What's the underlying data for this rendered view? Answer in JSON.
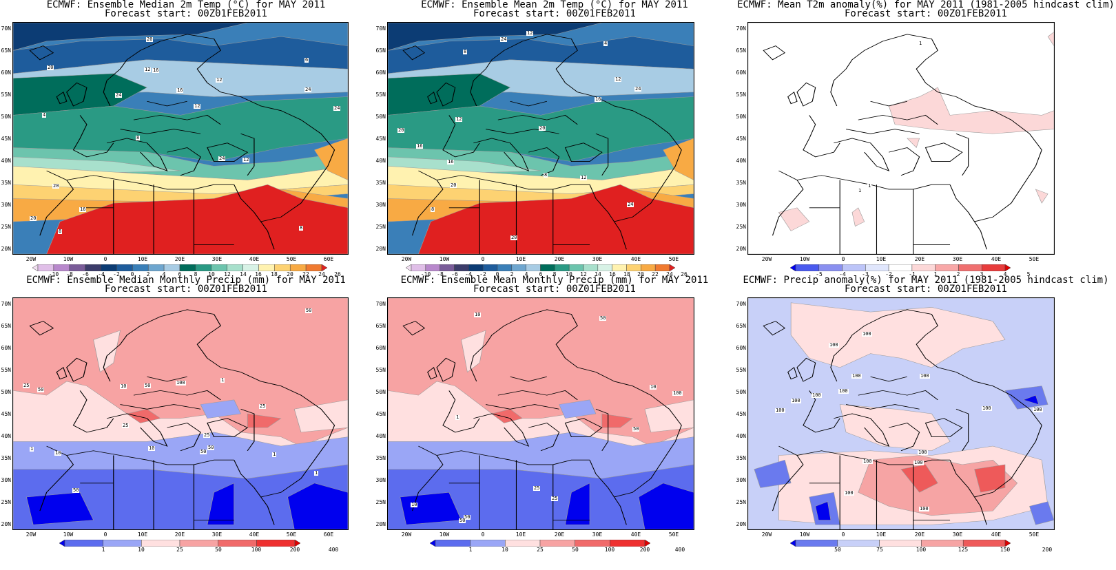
{
  "panels": [
    {
      "id": "p1",
      "title": "ECMWF: Ensemble Median 2m Temp (°C) for MAY 2011",
      "subtitle": "Forecast start: 00Z01FEB2011",
      "kind": "temp",
      "lat_ticks": [
        "70N",
        "65N",
        "60N",
        "55N",
        "50N",
        "45N",
        "40N",
        "35N",
        "30N",
        "25N",
        "20N"
      ],
      "lon_ticks": [
        "20W",
        "10W",
        "0",
        "10E",
        "20E",
        "30E",
        "40E",
        "50E",
        "60E"
      ],
      "colorbar": [
        "-10",
        "-8",
        "-6",
        "-4",
        "-2",
        "0",
        "2",
        "4",
        "6",
        "8",
        "10",
        "12",
        "14",
        "16",
        "18",
        "20",
        "22",
        "24",
        "26"
      ],
      "contour_labels": [
        "8",
        "4",
        "6",
        "8",
        "12",
        "8",
        "12",
        "16",
        "20",
        "24",
        "20",
        "16",
        "16",
        "12",
        "12",
        "20",
        "20",
        "24",
        "24",
        "24"
      ]
    },
    {
      "id": "p2",
      "title": "ECMWF: Ensemble Mean 2m Temp (°C) for MAY 2011",
      "subtitle": "Forecast start: 00Z01FEB2011",
      "kind": "temp",
      "lat_ticks": [
        "70N",
        "65N",
        "60N",
        "55N",
        "50N",
        "45N",
        "40N",
        "35N",
        "30N",
        "25N",
        "20N"
      ],
      "lon_ticks": [
        "20W",
        "10W",
        "0",
        "10E",
        "20E",
        "30E",
        "40E",
        "50E"
      ],
      "colorbar": [
        "-10",
        "-8",
        "-6",
        "-4",
        "-2",
        "0",
        "2",
        "4",
        "6",
        "8",
        "10",
        "12",
        "14",
        "16",
        "18",
        "20",
        "22",
        "24",
        "26"
      ],
      "contour_labels": [
        "8",
        "4",
        "8",
        "12",
        "8",
        "12",
        "16",
        "20",
        "24",
        "16",
        "16",
        "12",
        "12",
        "20",
        "20",
        "24",
        "24",
        "20"
      ]
    },
    {
      "id": "p3",
      "title": "ECMWF: Mean T2m anomaly(%) for MAY 2011 (1981-2005 hindcast clim)",
      "subtitle": "Forecast start: 00Z01FEB2011",
      "kind": "tanom",
      "lat_ticks": [
        "70N",
        "65N",
        "60N",
        "55N",
        "50N",
        "45N",
        "40N",
        "35N",
        "30N",
        "25N",
        "20N"
      ],
      "lon_ticks": [
        "20W",
        "10W",
        "0",
        "10E",
        "20E",
        "30E",
        "40E",
        "50E"
      ],
      "colorbar": [
        "-5",
        "-4",
        "-3",
        "-2",
        "-1",
        "1",
        "2",
        "3",
        "4",
        "5"
      ],
      "contour_labels": [
        "1",
        "1",
        "1"
      ]
    },
    {
      "id": "p4",
      "title": "ECMWF: Ensemble Median Monthly Precip (mm) for MAY 2011",
      "subtitle": "Forecast start: 00Z01FEB2011",
      "kind": "precip",
      "lat_ticks": [
        "70N",
        "65N",
        "60N",
        "55N",
        "50N",
        "45N",
        "40N",
        "35N",
        "30N",
        "25N",
        "20N"
      ],
      "lon_ticks": [
        "20W",
        "10W",
        "0",
        "10E",
        "20E",
        "30E",
        "40E",
        "50E",
        "60E"
      ],
      "colorbar": [
        "1",
        "10",
        "25",
        "50",
        "100",
        "200",
        "400"
      ],
      "contour_labels": [
        "50",
        "50",
        "50",
        "50",
        "25",
        "50",
        "25",
        "25",
        "10",
        "100",
        "50",
        "25",
        "10",
        "10",
        "1",
        "1",
        "1",
        "1"
      ]
    },
    {
      "id": "p5",
      "title": "ECMWF: Ensemble Mean Monthly Precip (mm) for MAY 2011",
      "subtitle": "Forecast start: 00Z01FEB2011",
      "kind": "precip",
      "lat_ticks": [
        "70N",
        "65N",
        "60N",
        "55N",
        "50N",
        "45N",
        "40N",
        "35N",
        "30N",
        "25N",
        "20N"
      ],
      "lon_ticks": [
        "20W",
        "10W",
        "0",
        "10E",
        "20E",
        "30E",
        "40E",
        "50E"
      ],
      "colorbar": [
        "1",
        "10",
        "25",
        "50",
        "100",
        "200",
        "400"
      ],
      "contour_labels": [
        "50",
        "50",
        "50",
        "100",
        "50",
        "25",
        "25",
        "10",
        "10",
        "10",
        "1"
      ]
    },
    {
      "id": "p6",
      "title": "ECMWF: Precip anomaly(%) for MAY 2011 (1981-2005 hindcast clim)",
      "subtitle": "Forecast start: 00Z01FEB2011",
      "kind": "panom",
      "lat_ticks": [
        "70N",
        "65N",
        "60N",
        "55N",
        "50N",
        "45N",
        "40N",
        "35N",
        "30N",
        "25N",
        "20N"
      ],
      "lon_ticks": [
        "20W",
        "10W",
        "0",
        "10E",
        "20E",
        "30E",
        "40E",
        "50E"
      ],
      "colorbar": [
        "50",
        "75",
        "100",
        "125",
        "150",
        "200"
      ],
      "contour_labels": [
        "100",
        "100",
        "100",
        "100",
        "100",
        "100",
        "100",
        "100",
        "100",
        "100",
        "100",
        "100",
        "100",
        "100",
        "100"
      ]
    }
  ],
  "colors": {
    "temp": [
      "#f2e0f2",
      "#e0bfe8",
      "#b888cc",
      "#7a5c99",
      "#3c3c6a",
      "#0c3c74",
      "#1e5c9c",
      "#3a7fb8",
      "#6ea6cf",
      "#a8cce4",
      "#006d5b",
      "#2a9a84",
      "#6cc4ad",
      "#a8e0cc",
      "#d8f2e6",
      "#fff2b0",
      "#fdd272",
      "#f8aa44",
      "#f07a30",
      "#e02020"
    ],
    "tanom": [
      "#0000ee",
      "#4a5aee",
      "#8a90f0",
      "#bcc4f8",
      "#e0e6fc",
      "#ffffff",
      "#fcd8d8",
      "#f8a8a8",
      "#f07070",
      "#e83c3c",
      "#dd0000"
    ],
    "precip": [
      "#0000ee",
      "#5c6cee",
      "#9aa6f6",
      "#ffe0e0",
      "#f7a3a3",
      "#f06a6a",
      "#ee3030",
      "#dd0000"
    ],
    "panom": [
      "#0000ee",
      "#6a7aee",
      "#c8d0f8",
      "#ffe0e0",
      "#f6a4a4",
      "#ee5a5a",
      "#dd0000"
    ]
  }
}
